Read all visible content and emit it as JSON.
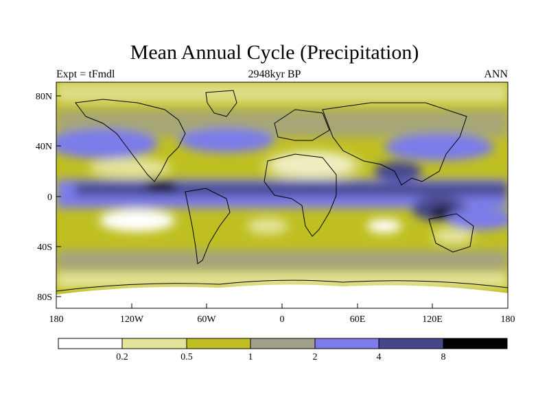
{
  "title": "Mean Annual Cycle (Precipitation)",
  "subtitle_left": "Expt = tFmdl",
  "subtitle_center": "2948kyr BP",
  "subtitle_right": "ANN",
  "map": {
    "lat_ticks": [
      "80N",
      "40N",
      "0",
      "40S",
      "80S"
    ],
    "lon_ticks": [
      "180",
      "120W",
      "60W",
      "0",
      "60E",
      "120E",
      "180"
    ]
  },
  "colorbar": {
    "colors": [
      "#ffffff",
      "#e3e39a",
      "#bfbf22",
      "#a0a08c",
      "#7b7bea",
      "#46468a",
      "#000000"
    ],
    "labels": [
      "0.2",
      "0.5",
      "1",
      "2",
      "4",
      "8"
    ]
  }
}
